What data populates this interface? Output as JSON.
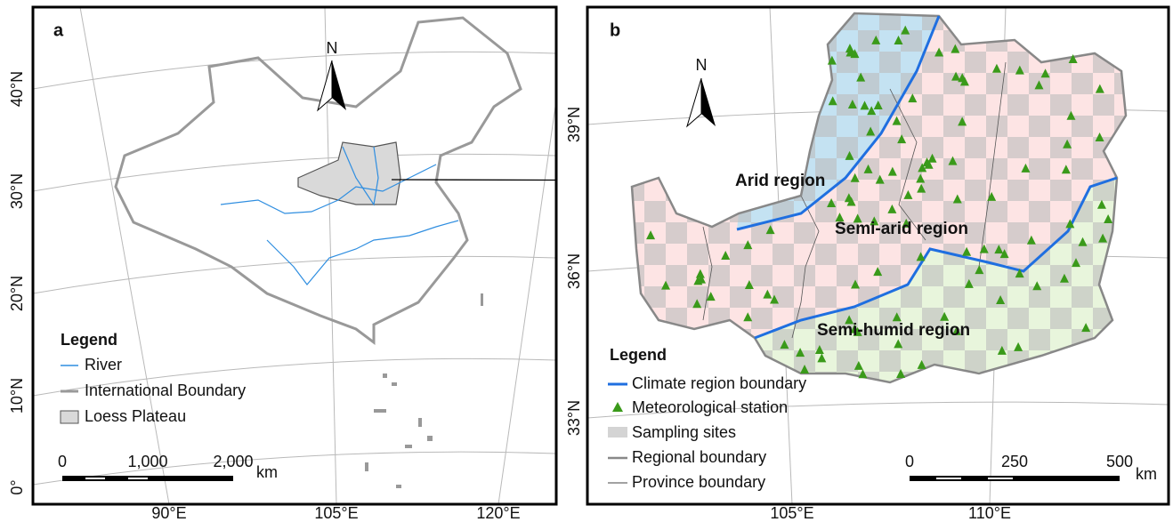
{
  "panel_a": {
    "label": "a",
    "north": "N",
    "lat_labels": [
      "40°N",
      "30°N",
      "20°N",
      "10°N",
      "0°"
    ],
    "lon_labels": [
      "90°E",
      "105°E",
      "120°E"
    ],
    "legend": {
      "title": "Legend",
      "items": [
        "River",
        "International Boundary",
        "Loess Plateau"
      ]
    },
    "scale": {
      "labels": [
        "0",
        "1,000",
        "2,000"
      ],
      "unit": "km"
    }
  },
  "panel_b": {
    "label": "b",
    "north": "N",
    "lat_labels": [
      "39°N",
      "36°N",
      "33°N"
    ],
    "lon_labels": [
      "105°E",
      "110°E"
    ],
    "region_labels": [
      "Arid region",
      "Semi-arid region",
      "Semi-humid region"
    ],
    "legend": {
      "title": "Legend",
      "items": [
        "Climate region boundary",
        "Meteorological station",
        "Sampling sites",
        "Regional boundary",
        "Province boundary"
      ]
    },
    "scale": {
      "labels": [
        "0",
        "250",
        "500"
      ],
      "unit": "km"
    }
  }
}
